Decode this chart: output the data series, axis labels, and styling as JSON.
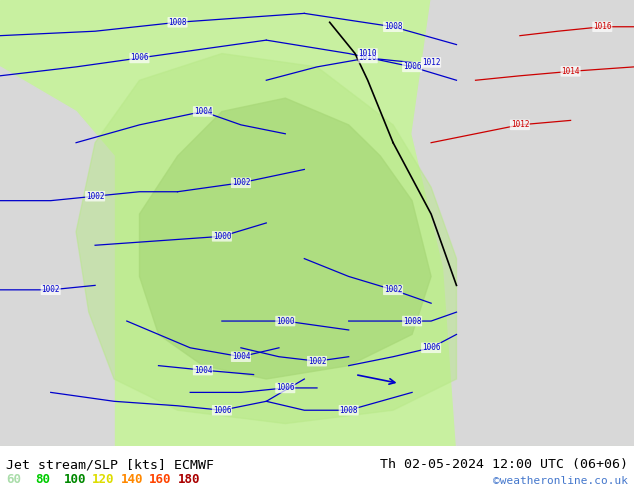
{
  "title_left": "Jet stream/SLP [kts] ECMWF",
  "title_right": "Th 02-05-2024 12:00 UTC (06+06)",
  "credit": "©weatheronline.co.uk",
  "legend_values": [
    "60",
    "80",
    "100",
    "120",
    "140",
    "160",
    "180"
  ],
  "legend_colors": [
    "#90ee90",
    "#00dd00",
    "#00aa00",
    "#ffff00",
    "#ffa500",
    "#ff4400",
    "#cc0000"
  ],
  "bg_color_left": "#d3d3d3",
  "bg_color_right": "#d3d3d3",
  "map_bg_green": "#c8f0a0",
  "map_bg_light": "#e8f8e0",
  "fig_width": 6.34,
  "fig_height": 4.9,
  "dpi": 100,
  "footer_bg": "#ffffff",
  "pressure_labels": [
    "1002",
    "1004",
    "1006",
    "1008",
    "1010",
    "1012",
    "1014",
    "1016"
  ],
  "contour_color_blue": "#0000cc",
  "contour_color_black": "#000000",
  "contour_color_red": "#cc0000"
}
